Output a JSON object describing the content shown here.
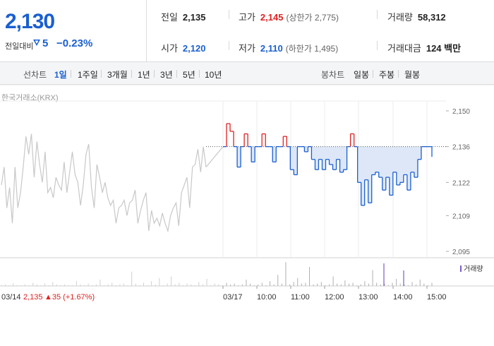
{
  "quote": {
    "current_price": "2,130",
    "diff_label": "전일대비",
    "diff_value": "5",
    "diff_rate": "−0.23%"
  },
  "stats": {
    "prev_close": {
      "label": "전일",
      "value": "2,135"
    },
    "high": {
      "label": "고가",
      "value": "2,145",
      "extra": "(상한가 2,775)"
    },
    "volume": {
      "label": "거래량",
      "value": "58,312"
    },
    "open": {
      "label": "시가",
      "value": "2,120"
    },
    "low": {
      "label": "저가",
      "value": "2,110",
      "extra": "(하한가 1,495)"
    },
    "trade_amount": {
      "label": "거래대금",
      "value": "124 백만"
    }
  },
  "period_bar": {
    "line_label": "선차트",
    "line_options": [
      "1일",
      "1주일",
      "3개월",
      "1년",
      "3년",
      "5년",
      "10년"
    ],
    "selected": "1일",
    "candle_label": "봉차트",
    "candle_options": [
      "일봉",
      "주봉",
      "월봉"
    ]
  },
  "chart": {
    "source": "한국거래소(KRX)",
    "volume_legend": "거래량",
    "footer": {
      "date": "03/14",
      "close": "2,135",
      "change": "▲35 (+1.67%)"
    },
    "x_ticks": [
      "03/17",
      "10:00",
      "11:00",
      "12:00",
      "13:00",
      "14:00",
      "15:00"
    ]
  },
  "chart_data": {
    "type": "line",
    "title": "",
    "ylabel": "",
    "y_ticks": [
      2150,
      2136,
      2122,
      2109,
      2095
    ],
    "ylim": [
      2095,
      2150
    ],
    "baseline": 2136,
    "colors": {
      "prev_day": "#c8c8c8",
      "up": "#e02020",
      "down": "#1a5fd0",
      "fill": "#dde7f7",
      "volume": "#7c5cc4"
    },
    "series": [
      {
        "values": [
          2121,
          2128,
          2112,
          2120,
          2106,
          2128,
          2112,
          2118,
          2128,
          2140,
          2133,
          2141,
          2124,
          2138,
          2129,
          2122,
          2134,
          2118,
          2120,
          2116,
          2124,
          2121,
          2119,
          2130,
          2118,
          2126,
          2134,
          2125,
          2122,
          2113,
          2121,
          2133,
          2137,
          2120,
          2112,
          2129,
          2124,
          2118,
          2122,
          2116,
          2113,
          2115,
          2106,
          2112,
          2113,
          2115,
          2109,
          2114,
          2115,
          2119,
          2106,
          2111,
          2115,
          2118,
          2103,
          2111,
          2106,
          2108,
          2105,
          2110,
          2106,
          2103,
          2109,
          2112,
          2114,
          2105,
          2118,
          2121,
          2124,
          2112,
          2128,
          2129,
          2135,
          2126,
          2136,
          2128
        ]
      },
      {
        "values": [
          2136,
          2145,
          2142,
          2136,
          2128,
          2136,
          2141,
          2136,
          2130,
          2136,
          2136,
          2141,
          2136,
          2136,
          2130,
          2136,
          2136,
          2140,
          2136,
          2127,
          2125,
          2136,
          2136,
          2134,
          2136,
          2131,
          2127,
          2131,
          2127,
          2131,
          2129,
          2127,
          2131,
          2126,
          2127,
          2136,
          2141,
          2136,
          2122,
          2113,
          2123,
          2114,
          2125,
          2126,
          2124,
          2119,
          2124,
          2117,
          2126,
          2121,
          2122,
          2125,
          2119,
          2126,
          2124,
          2131,
          2136,
          2136,
          2136,
          2132
        ]
      }
    ],
    "volume": [
      1,
      2,
      1,
      3,
      1,
      1,
      2,
      1,
      4,
      2,
      1,
      3,
      1,
      5,
      2,
      1,
      2,
      1,
      1,
      6,
      2,
      1,
      3,
      1,
      2,
      8,
      1,
      2,
      4,
      1,
      2,
      3,
      1,
      18,
      3,
      1,
      4,
      1,
      6,
      2,
      10,
      1,
      3,
      12,
      2,
      4,
      1,
      3,
      2,
      1,
      5,
      2,
      9,
      1,
      3,
      2,
      1,
      4,
      2,
      3,
      1,
      2,
      8,
      3,
      1,
      2,
      4,
      1,
      6,
      2,
      14,
      3,
      30,
      2,
      5,
      10,
      3,
      4,
      24,
      2,
      3,
      5,
      1,
      2,
      12,
      3,
      2,
      7,
      3,
      4,
      1,
      2,
      6,
      3,
      20,
      4,
      2,
      3,
      1,
      4,
      9,
      3,
      2,
      1,
      5,
      2,
      8,
      3,
      1,
      4
    ]
  }
}
